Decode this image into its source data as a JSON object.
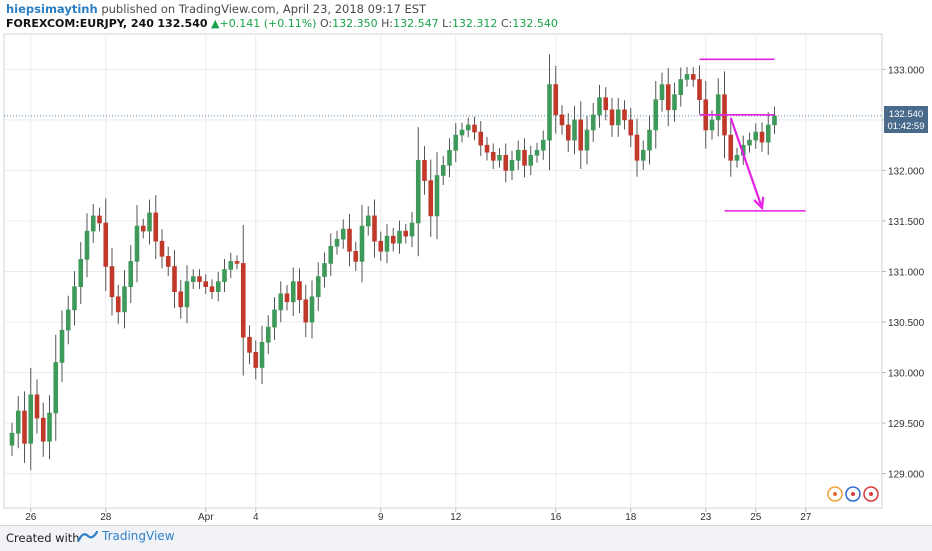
{
  "header": {
    "author": "hiepsimaytinh",
    "published_text": "published on TradingView.com, April 23, 2018 09:17 EST",
    "symbol": "FOREXCOM:EURJPY, 240",
    "last": "132.540",
    "change": "+0.141 (+0.11%)",
    "o_label": "O:",
    "o_value": "132.350",
    "h_label": "H:",
    "h_value": "132.547",
    "l_label": "L:",
    "l_value": "132.312",
    "c_label": "C:",
    "c_value": "132.540"
  },
  "price_badge": {
    "price": "132.540",
    "countdown": "01:42:59"
  },
  "footer": {
    "created": "Created with",
    "brand": "TradingView"
  },
  "colors": {
    "up": "#3f9a5a",
    "down": "#c0392b",
    "drawing": "#e621e6",
    "grid": "#e9ecef",
    "axis_text": "#333333"
  },
  "chart_data": {
    "type": "candlestick",
    "y_ticks": [
      129.0,
      129.5,
      130.0,
      130.5,
      131.0,
      131.5,
      132.0,
      132.5,
      133.0
    ],
    "y_tick_labels": [
      "129.000",
      "129.500",
      "130.000",
      "130.500",
      "131.000",
      "131.500",
      "132.000",
      "132.500",
      "133.000"
    ],
    "ylim": [
      128.66,
      133.35
    ],
    "x_labels": [
      "26",
      "28",
      "Apr",
      "4",
      "9",
      "12",
      "16",
      "18",
      "23",
      "25",
      "27"
    ],
    "last_price": 132.54,
    "candles_close": [
      129.4,
      129.62,
      129.3,
      129.78,
      129.55,
      129.32,
      129.6,
      130.1,
      130.42,
      130.62,
      130.85,
      131.12,
      131.4,
      131.55,
      131.48,
      131.05,
      130.75,
      130.6,
      130.85,
      131.1,
      131.45,
      131.4,
      131.58,
      131.3,
      131.15,
      131.05,
      130.8,
      130.65,
      130.9,
      130.95,
      130.9,
      130.85,
      130.8,
      130.9,
      131.02,
      131.1,
      131.08,
      130.35,
      130.2,
      130.05,
      130.3,
      130.45,
      130.62,
      130.78,
      130.7,
      130.9,
      130.72,
      130.5,
      130.75,
      130.95,
      131.08,
      131.25,
      131.32,
      131.42,
      131.2,
      131.1,
      131.45,
      131.55,
      131.3,
      131.2,
      131.35,
      131.28,
      131.4,
      131.35,
      131.48,
      132.1,
      131.9,
      131.55,
      131.95,
      132.05,
      132.2,
      132.35,
      132.4,
      132.45,
      132.38,
      132.25,
      132.18,
      132.1,
      132.15,
      132.0,
      132.1,
      132.2,
      132.05,
      132.15,
      132.2,
      132.3,
      132.85,
      132.55,
      132.45,
      132.3,
      132.5,
      132.2,
      132.4,
      132.55,
      132.72,
      132.6,
      132.45,
      132.6,
      132.5,
      132.35,
      132.1,
      132.2,
      132.4,
      132.7,
      132.85,
      132.6,
      132.75,
      132.9,
      132.95,
      132.9,
      132.7,
      132.4,
      132.5,
      132.75,
      132.35,
      132.1,
      132.15,
      132.25,
      132.3,
      132.38,
      132.28,
      132.45,
      132.54
    ],
    "x_tick_candle_index": [
      3,
      15,
      31,
      39,
      59,
      71,
      87,
      99,
      111,
      119,
      127
    ],
    "annotations": [
      {
        "type": "horizontal_line",
        "price": 133.1,
        "from_index": 110,
        "to_index": 122
      },
      {
        "type": "horizontal_line",
        "price": 132.55,
        "from_index": 110,
        "to_index": 122
      },
      {
        "type": "horizontal_line",
        "price": 131.6,
        "from_index": 114,
        "to_index": 127
      },
      {
        "type": "arrow",
        "from_index": 115,
        "from_price": 132.52,
        "to_index": 120,
        "to_price": 131.63
      }
    ]
  }
}
